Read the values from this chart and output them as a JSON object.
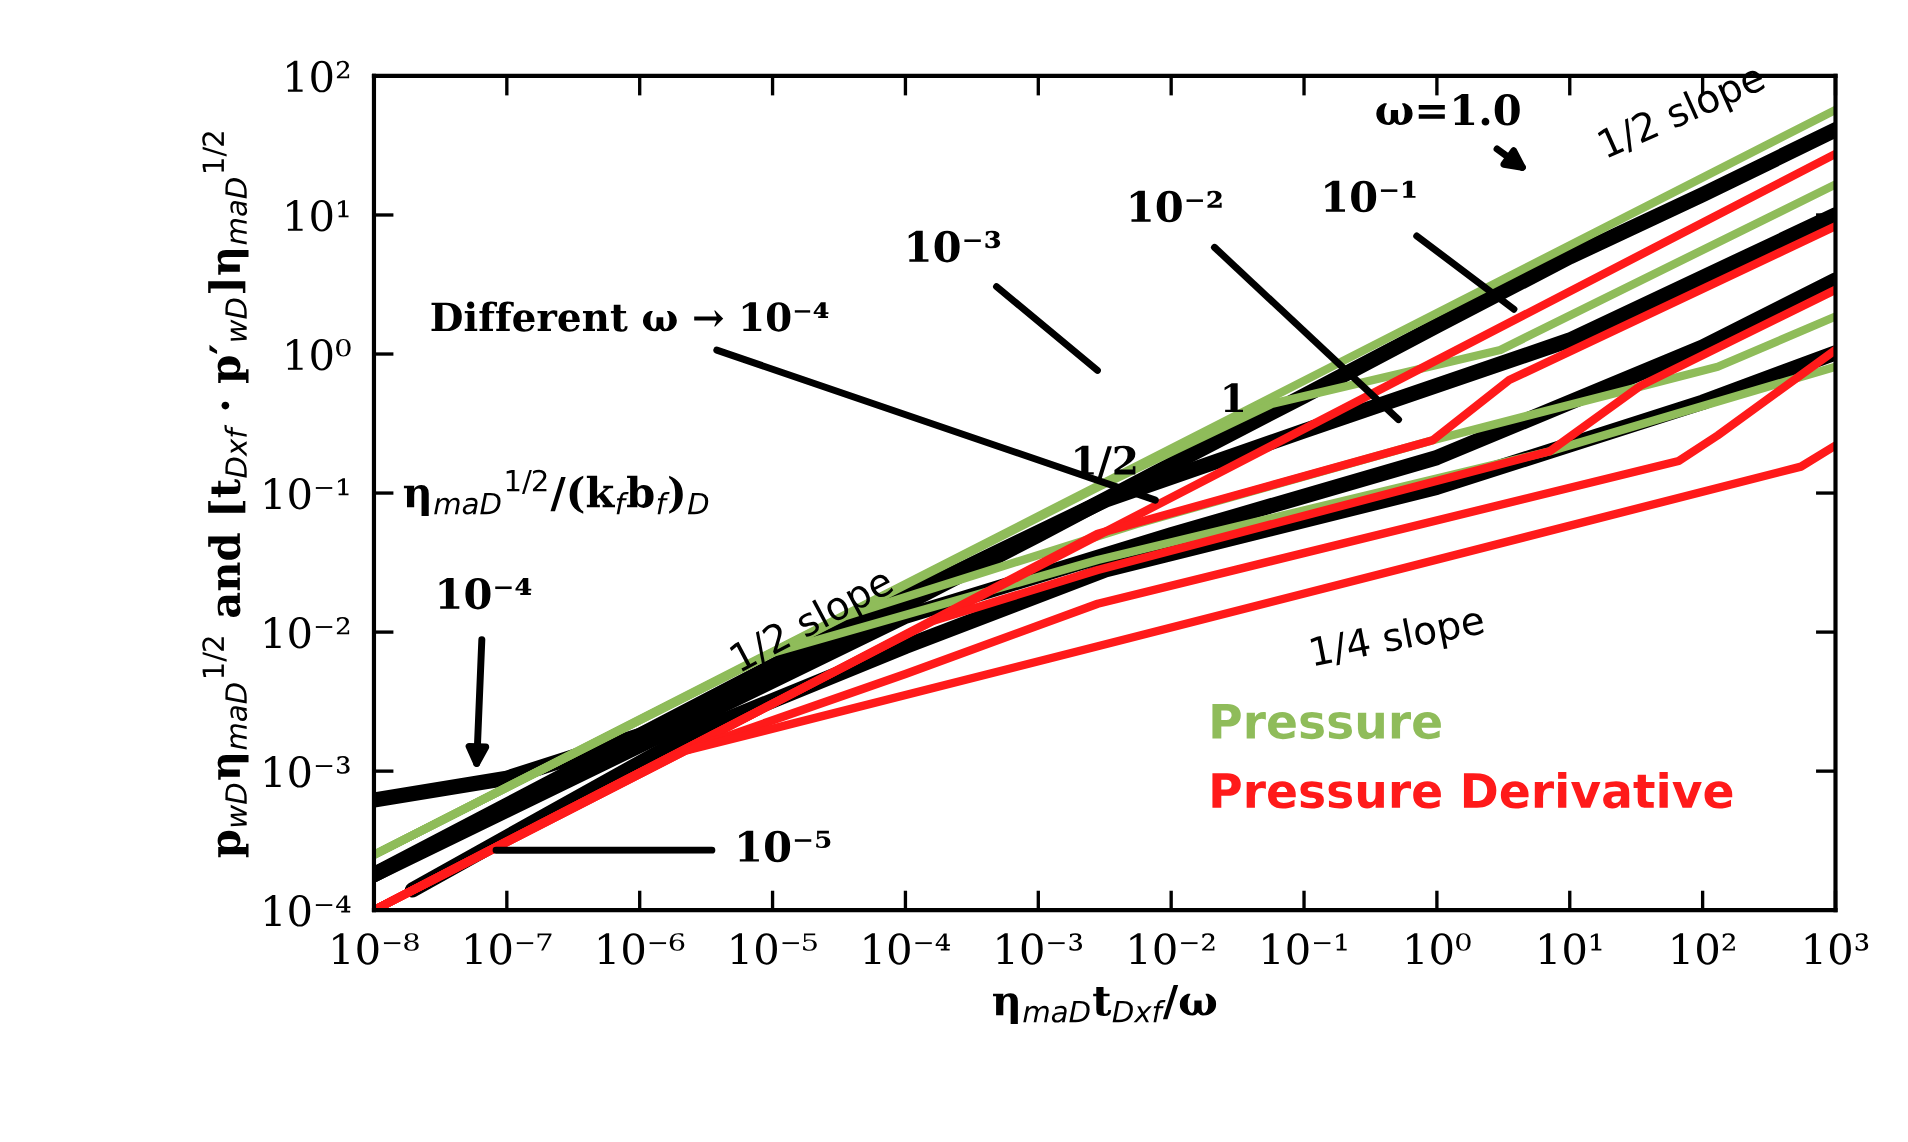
{
  "chart_data": {
    "type": "line",
    "log": "xy",
    "xlabel": "η$_{maD}$t$_{Dxf}$/ω",
    "ylabel": "p$_{wD}$η$_{maD}$$^{1/2}$ and [t$_{Dxf}$ · p′$_{wD}$]η$_{maD}$$^{1/2}$",
    "xlim": [
      1e-08,
      1000
    ],
    "ylim": [
      0.0001,
      100
    ],
    "xticks": [
      {
        "value": 1e-08,
        "label": "10⁻⁸"
      },
      {
        "value": 1e-07,
        "label": "10⁻⁷"
      },
      {
        "value": 1e-06,
        "label": "10⁻⁶"
      },
      {
        "value": 1e-05,
        "label": "10⁻⁵"
      },
      {
        "value": 0.0001,
        "label": "10⁻⁴"
      },
      {
        "value": 0.001,
        "label": "10⁻³"
      },
      {
        "value": 0.01,
        "label": "10⁻²"
      },
      {
        "value": 0.1,
        "label": "10⁻¹"
      },
      {
        "value": 1,
        "label": "10⁰"
      },
      {
        "value": 10,
        "label": "10¹"
      },
      {
        "value": 100,
        "label": "10²"
      },
      {
        "value": 1000,
        "label": "10³"
      }
    ],
    "yticks": [
      {
        "value": 0.0001,
        "label": "10⁻⁴"
      },
      {
        "value": 0.001,
        "label": "10⁻³"
      },
      {
        "value": 0.01,
        "label": "10⁻²"
      },
      {
        "value": 0.1,
        "label": "10⁻¹"
      },
      {
        "value": 1,
        "label": "10⁰"
      },
      {
        "value": 10,
        "label": "10¹"
      },
      {
        "value": 100,
        "label": "10²"
      }
    ],
    "legend": "bottom right",
    "grid": false,
    "series": [
      {
        "type": "line",
        "color": "#000000",
        "x": [
          1e-08,
          1e-07,
          1e-06,
          1e-05,
          0.0001,
          0.001,
          0.01,
          0.1,
          1,
          10,
          100,
          1000
        ],
        "values": [
          0.00062,
          0.00089,
          0.0018,
          0.005,
          0.016,
          0.05,
          0.16,
          0.5,
          1.6,
          5,
          14,
          41
        ]
      },
      {
        "type": "line",
        "color": "#000000",
        "x": [
          1.95e-08,
          2.6e-06,
          0.0001,
          0.0032,
          1,
          100,
          1000
        ],
        "values": [
          0.00014,
          0.0019,
          0.0079,
          0.028,
          0.11,
          0.45,
          1.02
        ]
      },
      {
        "type": "line",
        "color": "#000000",
        "x": [
          1e-08,
          1e-06,
          0.0001,
          0.0032,
          0.1,
          10,
          1000
        ],
        "values": [
          0.00018,
          0.0018,
          0.018,
          0.089,
          0.28,
          1.26,
          10
        ]
      },
      {
        "type": "line",
        "color": "#000000",
        "x": [
          1e-08,
          0.0001,
          0.01,
          1,
          100,
          1000
        ],
        "values": [
          0.00018,
          0.013,
          0.05,
          0.18,
          1.12,
          3.4
        ]
      },
      {
        "type": "line",
        "name": "Pressure",
        "color": "#8fbc5a",
        "x": [
          1e-08,
          1000
        ],
        "values": [
          0.00025,
          57
        ]
      },
      {
        "type": "line",
        "color": "#8fbc5a",
        "x": [
          1e-08,
          0.0028,
          0.058,
          3.0,
          1000
        ],
        "values": [
          0.00025,
          0.11,
          0.44,
          1.07,
          16.6
        ]
      },
      {
        "type": "line",
        "color": "#8fbc5a",
        "x": [
          1e-08,
          3.5e-05,
          0.0055,
          0.93,
          130,
          1000
        ],
        "values": [
          0.00025,
          0.013,
          0.06,
          0.24,
          0.81,
          1.86
        ]
      },
      {
        "type": "line",
        "color": "#8fbc5a",
        "x": [
          1e-08,
          1e-05,
          0.0028,
          7.1,
          1000
        ],
        "values": [
          0.00025,
          0.0071,
          0.033,
          0.2,
          0.81
        ]
      },
      {
        "type": "line",
        "name": "Pressure Derivative",
        "color": "#ff1a1a",
        "x": [
          1e-08,
          1000
        ],
        "values": [
          0.0001,
          27.5
        ]
      },
      {
        "type": "line",
        "color": "#ff1a1a",
        "x": [
          1e-08,
          2e-05,
          0.0028,
          0.93,
          3.5,
          1000
        ],
        "values": [
          0.0001,
          0.0043,
          0.051,
          0.24,
          0.65,
          8.3
        ]
      },
      {
        "type": "line",
        "color": "#ff1a1a",
        "x": [
          1e-08,
          2e-05,
          0.00016,
          0.0028,
          7.1,
          34,
          1000
        ],
        "values": [
          0.0001,
          0.0043,
          0.012,
          0.028,
          0.2,
          0.59,
          2.9
        ]
      },
      {
        "type": "line",
        "color": "#ff1a1a",
        "x": [
          1e-08,
          2.2e-06,
          0.0001,
          0.0028,
          66,
          130,
          1000
        ],
        "values": [
          0.0001,
          0.0014,
          0.005,
          0.016,
          0.17,
          0.26,
          1.07
        ]
      },
      {
        "type": "line",
        "color": "#ff1a1a",
        "x": [
          1e-08,
          2.2e-06,
          0.0028,
          550,
          1000
        ],
        "values": [
          0.0001,
          0.0014,
          0.0079,
          0.155,
          0.22
        ]
      }
    ],
    "annotations": [
      "ω=1.0",
      "1/2 slope",
      {
        "text": "10⁻¹",
        "x": 3.8,
        "y": 2.1
      },
      "10⁻²",
      "10⁻³",
      {
        "text": "Different ω → 10⁻⁴",
        "x": 0.0076,
        "y": 0.089
      },
      "1/2",
      "1",
      "η$_{maD}$$^{1/2}$/(k$_{f}$b$_{f}$)$_{D}$",
      "1/2 slope",
      {
        "text": "10⁻⁴",
        "x": 5.9e-08,
        "y": 0.001
      },
      {
        "text": "10⁻⁵",
        "x": 8.3e-08,
        "y": 0.00027
      },
      "1/4 slope"
    ]
  }
}
